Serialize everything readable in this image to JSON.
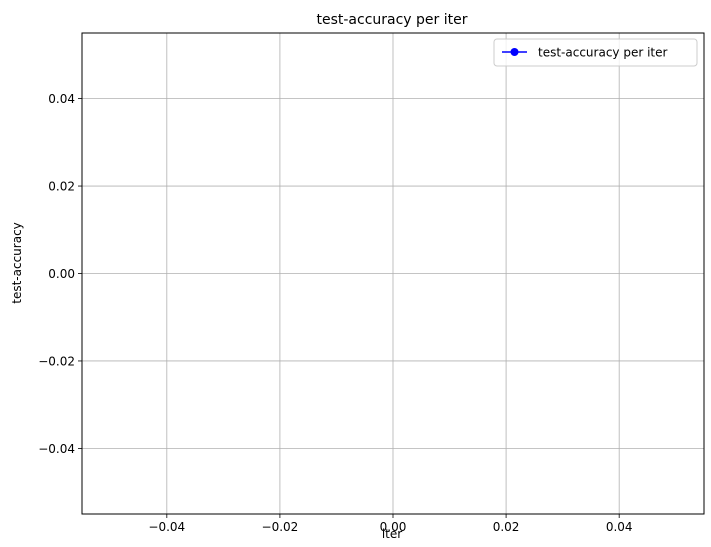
{
  "chart_data": {
    "type": "line",
    "title": "test-accuracy per iter",
    "xlabel": "iter",
    "ylabel": "test-accuracy",
    "xlim": [
      -0.055,
      0.055
    ],
    "ylim": [
      -0.055,
      0.055
    ],
    "xticks": [
      -0.04,
      -0.02,
      0.0,
      0.02,
      0.04
    ],
    "xtick_labels": [
      "−0.04",
      "−0.02",
      "0.00",
      "0.02",
      "0.04"
    ],
    "yticks": [
      -0.04,
      -0.02,
      0.0,
      0.02,
      0.04
    ],
    "ytick_labels": [
      "−0.04",
      "−0.02",
      "0.00",
      "0.02",
      "0.04"
    ],
    "grid": true,
    "legend_position": "upper right",
    "series": [
      {
        "name": "test-accuracy per iter",
        "color": "#0000ff",
        "marker": "circle",
        "x": [],
        "y": []
      }
    ]
  }
}
